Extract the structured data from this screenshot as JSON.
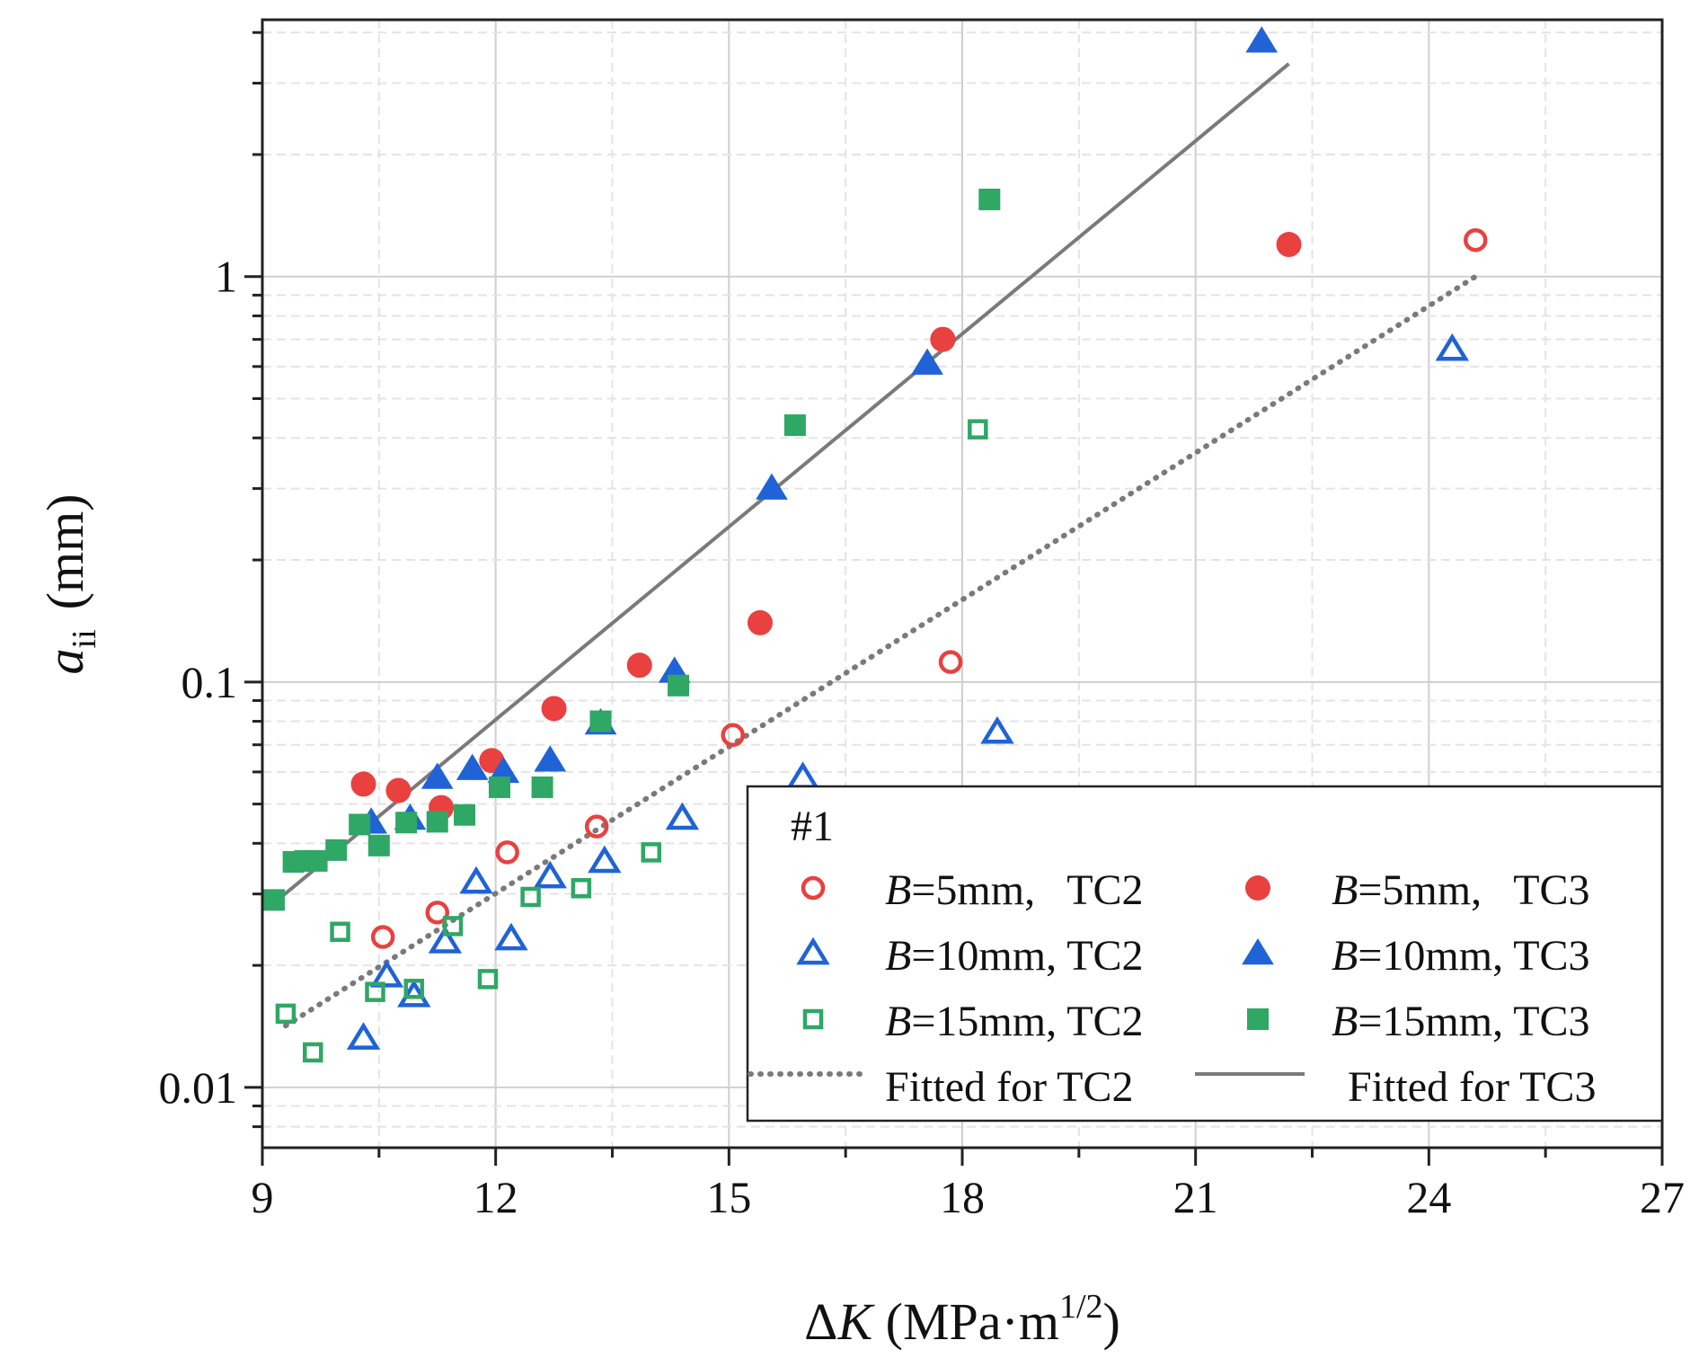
{
  "chart_data": {
    "type": "scatter",
    "x_scale": "linear",
    "y_scale": "log",
    "xlim": [
      9,
      27
    ],
    "ylim": [
      0.0071,
      4.3
    ],
    "x_ticks": [
      9,
      12,
      15,
      18,
      21,
      24,
      27
    ],
    "x_tick_labels": [
      "9",
      "12",
      "15",
      "18",
      "21",
      "24",
      "27"
    ],
    "y_ticks": [
      0.01,
      0.1,
      1
    ],
    "y_tick_labels": [
      "0.01",
      "0.1",
      "1"
    ],
    "grid": true,
    "xlabel": {
      "delta": "Δ",
      "var": "K",
      "unit": " (MPa·m",
      "exp": "1/2",
      "close": ")"
    },
    "ylabel": {
      "var": "a",
      "sub": "ii",
      "unit": "(mm)"
    },
    "legend": {
      "title": "#1",
      "placement": "bottom-right",
      "entries": [
        {
          "b": "B",
          "text": "=5mm,   TC2",
          "key": "b5_tc2"
        },
        {
          "b": "B",
          "text": "=5mm,   TC3",
          "key": "b5_tc3"
        },
        {
          "b": "B",
          "text": "=10mm, TC2",
          "key": "b10_tc2"
        },
        {
          "b": "B",
          "text": "=10mm, TC3",
          "key": "b10_tc3"
        },
        {
          "b": "B",
          "text": "=15mm, TC2",
          "key": "b15_tc2"
        },
        {
          "b": "B",
          "text": "=15mm, TC3",
          "key": "b15_tc3"
        },
        {
          "b": "",
          "text": "Fitted for TC2",
          "key": "fit_tc2"
        },
        {
          "b": "",
          "text": "Fitted for TC3",
          "key": "fit_tc3"
        }
      ]
    },
    "series": [
      {
        "key": "b5_tc2",
        "name": "B=5mm, TC2",
        "marker": "circle",
        "filled": false,
        "color": "#e8413f",
        "points": [
          [
            10.55,
            0.0235
          ],
          [
            11.25,
            0.027
          ],
          [
            12.15,
            0.038
          ],
          [
            13.3,
            0.044
          ],
          [
            15.05,
            0.074
          ],
          [
            17.85,
            0.112
          ],
          [
            24.6,
            1.23
          ]
        ]
      },
      {
        "key": "b5_tc3",
        "name": "B=5mm, TC3",
        "marker": "circle",
        "filled": true,
        "color": "#e8413f",
        "points": [
          [
            10.3,
            0.056
          ],
          [
            10.75,
            0.054
          ],
          [
            11.3,
            0.049
          ],
          [
            11.95,
            0.064
          ],
          [
            12.75,
            0.086
          ],
          [
            13.85,
            0.11
          ],
          [
            15.4,
            0.14
          ],
          [
            17.75,
            0.7
          ],
          [
            22.2,
            1.2
          ]
        ]
      },
      {
        "key": "b10_tc2",
        "name": "B=10mm, TC2",
        "marker": "triangle",
        "filled": false,
        "color": "#1f63d6",
        "points": [
          [
            10.3,
            0.0132
          ],
          [
            10.6,
            0.0188
          ],
          [
            10.95,
            0.0168
          ],
          [
            11.35,
            0.0228
          ],
          [
            11.75,
            0.032
          ],
          [
            12.2,
            0.0232
          ],
          [
            12.7,
            0.033
          ],
          [
            13.4,
            0.036
          ],
          [
            14.4,
            0.046
          ],
          [
            15.95,
            0.058
          ],
          [
            18.45,
            0.075
          ],
          [
            24.3,
            0.66
          ]
        ]
      },
      {
        "key": "b10_tc3",
        "name": "B=10mm, TC3",
        "marker": "triangle",
        "filled": true,
        "color": "#1f63d6",
        "points": [
          [
            10.4,
            0.045
          ],
          [
            10.9,
            0.046
          ],
          [
            11.25,
            0.058
          ],
          [
            11.7,
            0.061
          ],
          [
            12.1,
            0.06
          ],
          [
            12.7,
            0.064
          ],
          [
            13.35,
            0.079
          ],
          [
            14.3,
            0.106
          ],
          [
            15.55,
            0.3
          ],
          [
            17.55,
            0.61
          ],
          [
            21.85,
            3.8
          ]
        ]
      },
      {
        "key": "b15_tc2",
        "name": "B=15mm, TC2",
        "marker": "square",
        "filled": false,
        "color": "#2fa765",
        "points": [
          [
            9.3,
            0.0152
          ],
          [
            9.65,
            0.0122
          ],
          [
            10.0,
            0.0242
          ],
          [
            10.45,
            0.0172
          ],
          [
            10.95,
            0.0175
          ],
          [
            11.45,
            0.025
          ],
          [
            11.9,
            0.0185
          ],
          [
            12.45,
            0.0295
          ],
          [
            13.1,
            0.031
          ],
          [
            14.0,
            0.038
          ],
          [
            18.2,
            0.42
          ]
        ]
      },
      {
        "key": "b15_tc3",
        "name": "B=15mm, TC3",
        "marker": "square",
        "filled": true,
        "color": "#2fa765",
        "points": [
          [
            9.15,
            0.029
          ],
          [
            9.4,
            0.036
          ],
          [
            9.55,
            0.0362
          ],
          [
            9.7,
            0.0362
          ],
          [
            9.95,
            0.0385
          ],
          [
            10.25,
            0.0445
          ],
          [
            10.5,
            0.0395
          ],
          [
            10.85,
            0.045
          ],
          [
            11.25,
            0.0452
          ],
          [
            11.6,
            0.047
          ],
          [
            12.05,
            0.055
          ],
          [
            12.6,
            0.055
          ],
          [
            13.35,
            0.08
          ],
          [
            14.35,
            0.098
          ],
          [
            15.85,
            0.43
          ],
          [
            18.35,
            1.55
          ]
        ]
      }
    ],
    "fits": [
      {
        "key": "fit_tc2",
        "name": "Fitted for TC2",
        "style": "dotted",
        "color": "#7a7a7a",
        "x_range": [
          9.3,
          24.6
        ],
        "y_start": 0.0142,
        "y_end": 1.0
      },
      {
        "key": "fit_tc3",
        "name": "Fitted for TC3",
        "style": "solid",
        "color": "#7a7a7a",
        "x_range": [
          9.15,
          22.2
        ],
        "y_start": 0.0285,
        "y_end": 3.35
      }
    ],
    "minor_x_step": 1.5
  }
}
